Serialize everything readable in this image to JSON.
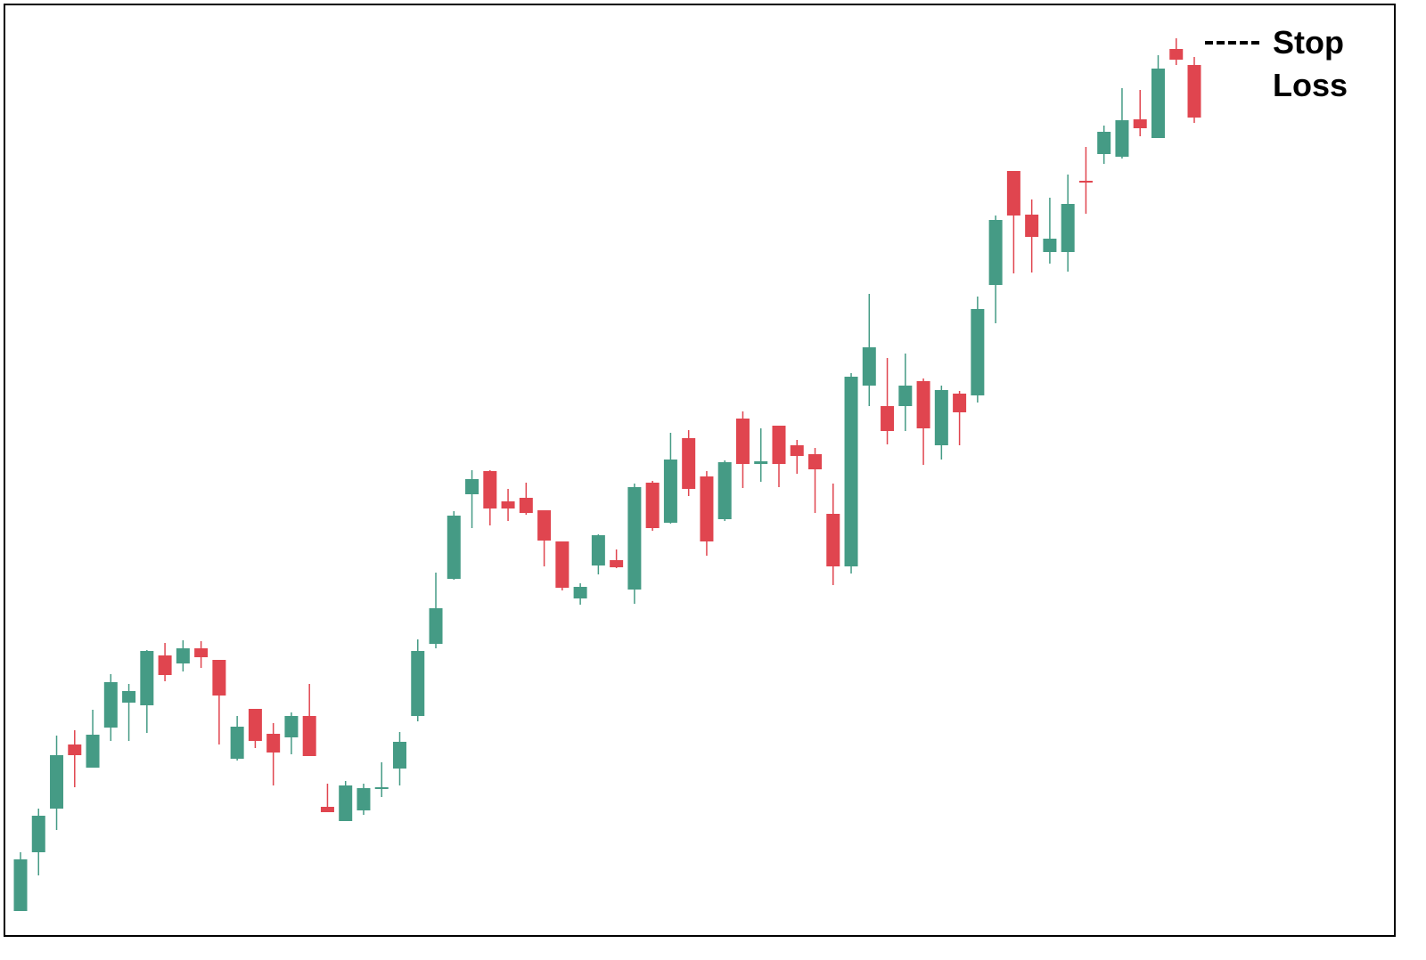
{
  "chart_data": {
    "type": "candlestick",
    "annotation": "Stop Loss",
    "up_color": "#459b85",
    "down_color": "#e0454f",
    "open": [
      55,
      121,
      170,
      242,
      216,
      261,
      289,
      286,
      342,
      333,
      350,
      337,
      226,
      282,
      254,
      250,
      274,
      172,
      156,
      168,
      192,
      215,
      274,
      355,
      428,
      523,
      549,
      515,
      519,
      505,
      470,
      406,
      443,
      449,
      416,
      536,
      491,
      586,
      543,
      495,
      608,
      557,
      600,
      578,
      568,
      501,
      442,
      645,
      622,
      622,
      650,
      578,
      636,
      634,
      758,
      886,
      837,
      795,
      795,
      875,
      905,
      902,
      944,
      923,
      1023,
      1005
    ],
    "high": [
      121,
      170,
      252,
      258,
      281,
      321,
      310,
      348,
      356,
      359,
      358,
      337,
      274,
      282,
      266,
      278,
      310,
      198,
      201,
      198,
      222,
      256,
      360,
      435,
      504,
      550,
      550,
      529,
      536,
      505,
      470,
      423,
      478,
      461,
      535,
      538,
      592,
      595,
      549,
      561,
      616,
      597,
      600,
      584,
      575,
      535,
      659,
      748,
      676,
      681,
      653,
      645,
      639,
      745,
      836,
      886,
      854,
      856,
      882,
      913,
      937,
      979,
      977,
      1016,
      1035,
      1014
    ],
    "low": [
      55,
      95,
      146,
      194,
      216,
      246,
      246,
      255,
      313,
      324,
      328,
      242,
      224,
      238,
      196,
      231,
      229,
      166,
      156,
      163,
      183,
      196,
      268,
      350,
      427,
      485,
      488,
      493,
      500,
      442,
      415,
      399,
      433,
      440,
      400,
      482,
      490,
      521,
      454,
      493,
      530,
      537,
      531,
      546,
      502,
      421,
      434,
      622,
      579,
      594,
      556,
      562,
      578,
      626,
      715,
      771,
      772,
      782,
      773,
      838,
      894,
      900,
      925,
      923,
      1005,
      940
    ],
    "close": [
      113,
      162,
      230,
      230,
      253,
      312,
      302,
      347,
      320,
      350,
      340,
      297,
      262,
      246,
      233,
      274,
      229,
      166,
      196,
      193,
      194,
      245,
      347,
      395,
      499,
      540,
      507,
      507,
      502,
      471,
      418,
      419,
      477,
      441,
      531,
      485,
      562,
      529,
      470,
      559,
      557,
      560,
      557,
      566,
      551,
      442,
      655,
      688,
      594,
      645,
      597,
      640,
      615,
      731,
      831,
      836,
      812,
      810,
      849,
      874,
      930,
      943,
      934,
      1001,
      1011,
      946
    ]
  }
}
